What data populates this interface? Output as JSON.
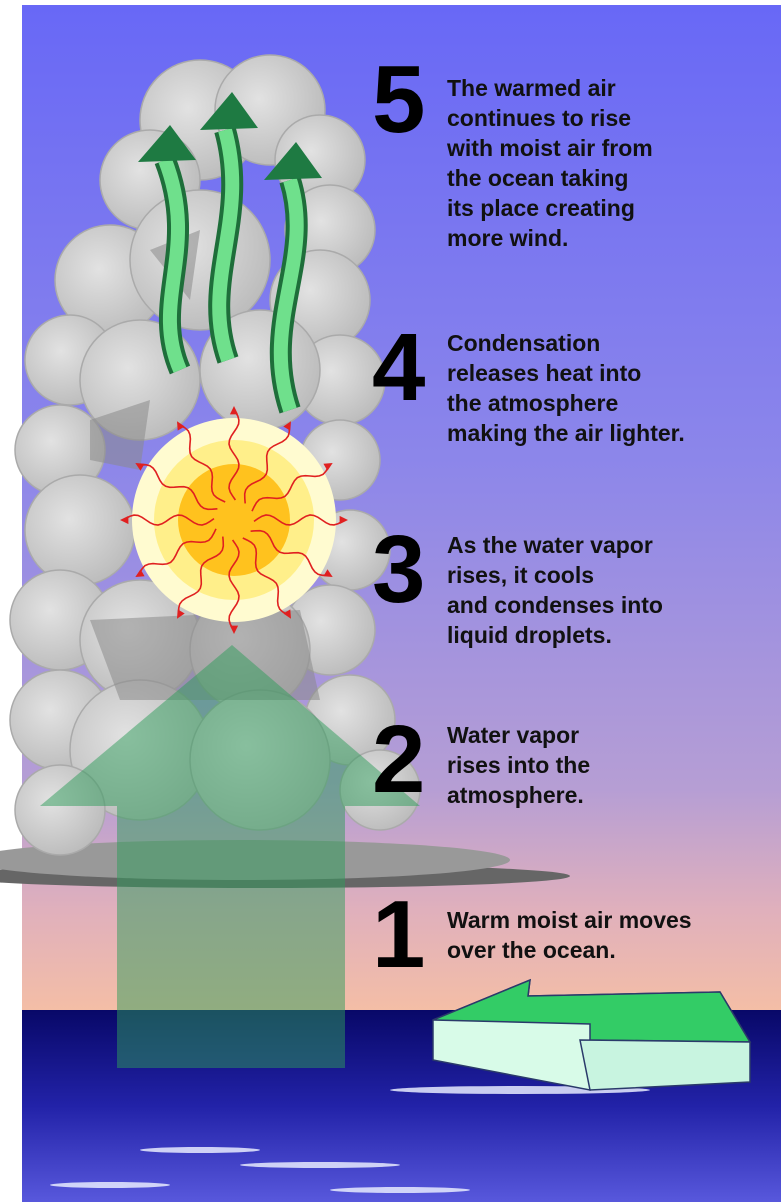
{
  "steps": [
    {
      "number": "5",
      "lines": [
        "The warmed air",
        "continues to rise",
        "with moist air from",
        "the ocean taking",
        "its place creating",
        "more wind."
      ]
    },
    {
      "number": "4",
      "lines": [
        "Condensation",
        "releases heat into",
        "the atmosphere",
        "making the air lighter."
      ]
    },
    {
      "number": "3",
      "lines": [
        "As the water vapor",
        "rises, it cools",
        "and condenses into",
        "liquid droplets."
      ]
    },
    {
      "number": "2",
      "lines": [
        "Water vapor",
        "rises into the",
        "atmosphere."
      ]
    },
    {
      "number": "1",
      "lines": [
        "Warm moist air moves",
        "over the ocean."
      ]
    }
  ]
}
